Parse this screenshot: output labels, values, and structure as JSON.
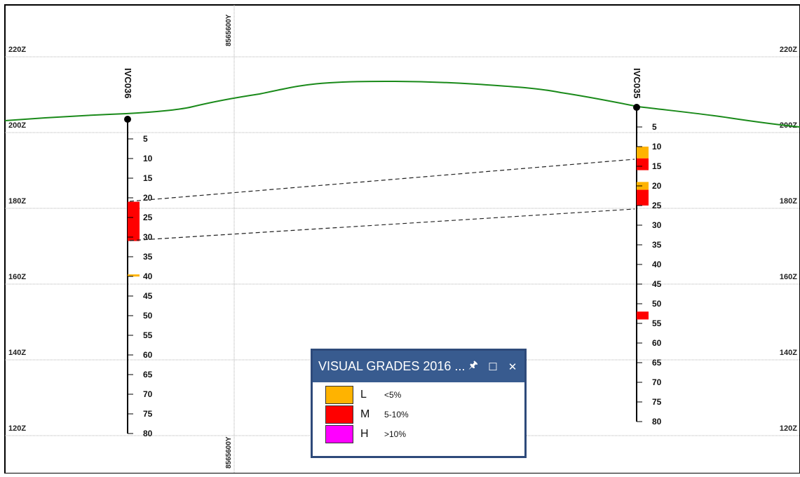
{
  "z_levels": [
    {
      "label": "220Z",
      "value": 220
    },
    {
      "label": "200Z",
      "value": 200
    },
    {
      "label": "180Z",
      "value": 180
    },
    {
      "label": "160Z",
      "value": 160
    },
    {
      "label": "140Z",
      "value": 140
    },
    {
      "label": "120Z",
      "value": 120
    }
  ],
  "northing_label": "8565600Y",
  "holes": [
    {
      "name": "IVC036",
      "depth_ticks": [
        "5",
        "10",
        "15",
        "20",
        "25",
        "30",
        "35",
        "40",
        "45",
        "50",
        "55",
        "60",
        "65",
        "70",
        "75",
        "80"
      ],
      "intervals": [
        {
          "from": 21,
          "to": 31,
          "grade": "M"
        },
        {
          "from": 39.5,
          "to": 40,
          "grade": "L"
        }
      ]
    },
    {
      "name": "IVC035",
      "depth_ticks": [
        "5",
        "10",
        "15",
        "20",
        "25",
        "30",
        "35",
        "40",
        "45",
        "50",
        "55",
        "60",
        "65",
        "70",
        "75",
        "80"
      ],
      "intervals": [
        {
          "from": 10,
          "to": 13,
          "grade": "L"
        },
        {
          "from": 13,
          "to": 16,
          "grade": "M"
        },
        {
          "from": 19,
          "to": 21,
          "grade": "L"
        },
        {
          "from": 21,
          "to": 25,
          "grade": "M"
        },
        {
          "from": 52,
          "to": 54,
          "grade": "M"
        }
      ]
    }
  ],
  "legend": {
    "title": "VISUAL GRADES 2016 ...",
    "pin_icon": "pin-icon",
    "maximize_icon": "maximize-icon",
    "close_icon": "close-icon",
    "items": [
      {
        "code": "L",
        "range": "<5%",
        "color": "#FFB300"
      },
      {
        "code": "M",
        "range": "5-10%",
        "color": "#FF0000"
      },
      {
        "code": "H",
        "range": ">10%",
        "color": "#FF00FF"
      }
    ]
  },
  "colors": {
    "topography": "#1a8a1a",
    "grid": "#9a9a9a",
    "hole": "#000000"
  }
}
